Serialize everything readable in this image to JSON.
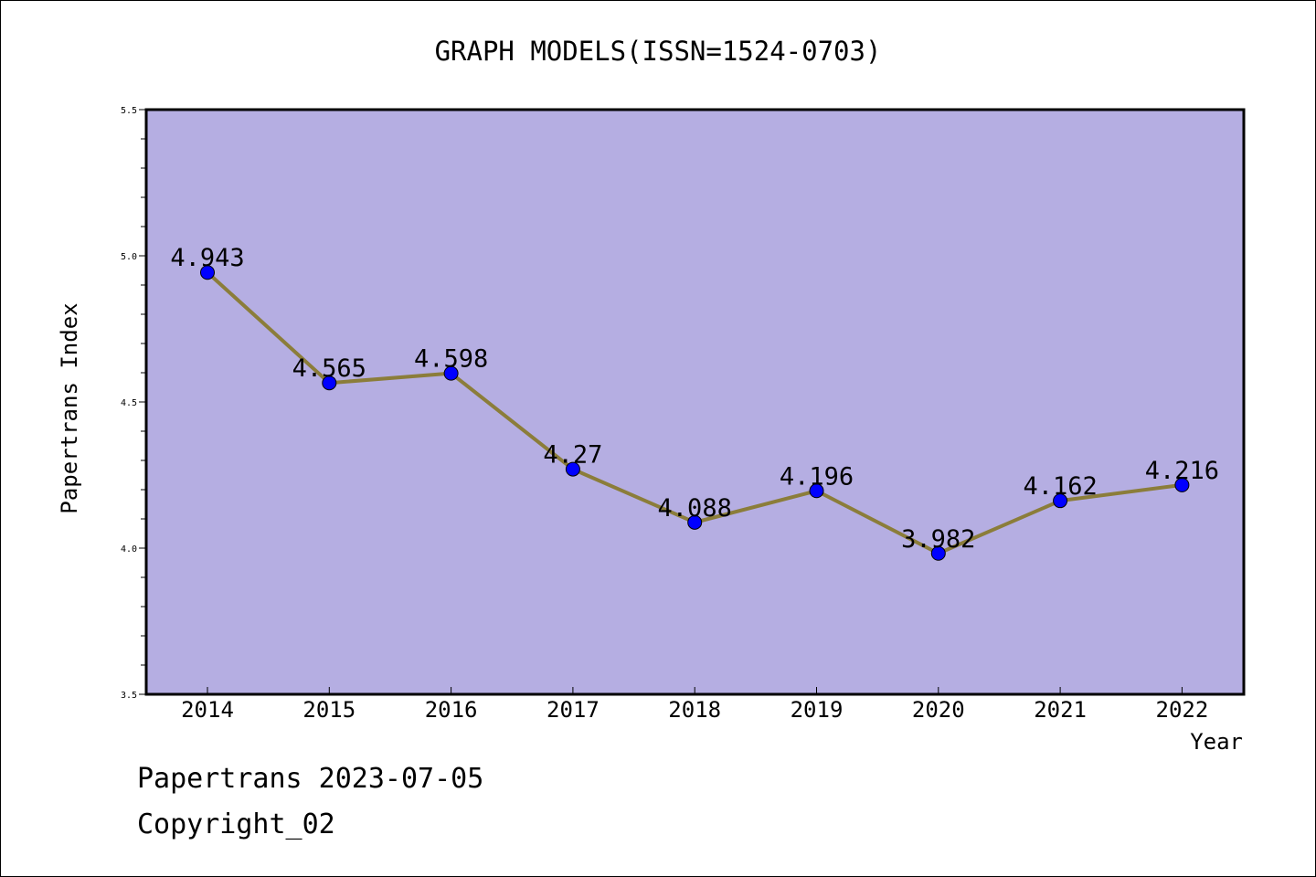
{
  "chart_data": {
    "type": "line",
    "title": "GRAPH MODELS(ISSN=1524-0703)",
    "xlabel": "Year",
    "ylabel": "Papertrans Index",
    "categories": [
      "2014",
      "2015",
      "2016",
      "2017",
      "2018",
      "2019",
      "2020",
      "2021",
      "2022"
    ],
    "values": [
      4.943,
      4.565,
      4.598,
      4.27,
      4.088,
      4.196,
      3.982,
      4.162,
      4.216
    ],
    "value_labels": [
      "4.943",
      "4.565",
      "4.598",
      "4.27",
      "4.088",
      "4.196",
      "3.982",
      "4.162",
      "4.216"
    ],
    "ylim": [
      3.5,
      5.5
    ],
    "yticks": [
      "3.5",
      "4.0",
      "4.5",
      "5.0",
      "5.5"
    ],
    "grid": false,
    "colors": {
      "plot_background": "#b5aee2",
      "line": "#8b7d3a",
      "marker": "#0000ff"
    }
  },
  "footer": {
    "line1": "Papertrans 2023-07-05",
    "line2": "Copyright_02"
  }
}
